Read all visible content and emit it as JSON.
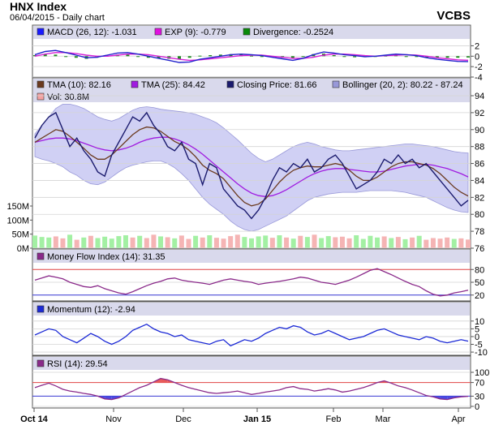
{
  "header": {
    "title": "HNX Index",
    "subtitle": "06/04/2015 - Daily chart",
    "brand": "VCBS"
  },
  "x_axis": {
    "labels": [
      "Oct 14",
      "Nov",
      "Dec",
      "Jan 15",
      "Feb",
      "Mar",
      "Apr"
    ]
  },
  "colors": {
    "panel_bg": "#ffffff",
    "legend_bg": "#d9d9ec",
    "grid": "#d4d4d4",
    "price": "#1b1b6e",
    "tma10": "#6b3a1f",
    "tma25": "#a01ce0",
    "bollinger_fill": "#b7b7ee",
    "bollinger_edge": "#9898d8",
    "vol_up": "#a3f0a3",
    "vol_down": "#f5b4b4",
    "macd": "#2222cc",
    "signal": "#d61fd6",
    "divergence": "#208a20",
    "ref_red": "#e34848",
    "ref_blue": "#3a3ad6",
    "mfi": "#8a2a8a",
    "momentum": "#1c2ad6",
    "rsi": "#8a2a8a"
  },
  "chart_data": [
    {
      "type": "line",
      "title": "MACD",
      "legend": [
        {
          "label": "MACD (26, 12): -1.031",
          "color": "#1a1aff"
        },
        {
          "label": "EXP (9): -0.779",
          "color": "#e010e0"
        },
        {
          "label": "Divergence: -0.2524",
          "color": "#0a8a0a"
        }
      ],
      "yticks": [
        "2",
        "0",
        "-2",
        "-4"
      ],
      "ylim": [
        -4,
        3
      ],
      "series": [
        {
          "name": "MACD",
          "values": [
            0.3,
            0.9,
            1.1,
            0.7,
            0.2,
            -0.3,
            -0.2,
            0.2,
            0.6,
            0.7,
            0.4,
            0.0,
            -0.4,
            -0.8,
            -1.2,
            -1.1,
            -0.6,
            -0.3,
            0.0,
            0.3,
            0.4,
            0.3,
            0.1,
            -0.2,
            -0.5,
            -0.8,
            -0.4,
            0.3,
            0.8,
            0.6,
            0.3,
            0.1,
            -0.1,
            0.0,
            0.2,
            0.4,
            0.3,
            0.1,
            -0.3,
            -0.6,
            -0.8,
            -1.0,
            -1.03
          ]
        },
        {
          "name": "EXP",
          "values": [
            0.0,
            0.4,
            0.7,
            0.7,
            0.5,
            0.2,
            0.0,
            0.0,
            0.2,
            0.4,
            0.4,
            0.3,
            0.0,
            -0.3,
            -0.6,
            -0.8,
            -0.7,
            -0.5,
            -0.3,
            -0.1,
            0.1,
            0.2,
            0.2,
            0.0,
            -0.2,
            -0.4,
            -0.4,
            -0.2,
            0.2,
            0.4,
            0.4,
            0.3,
            0.1,
            0.0,
            0.1,
            0.2,
            0.3,
            0.2,
            0.0,
            -0.3,
            -0.5,
            -0.7,
            -0.78
          ]
        },
        {
          "name": "Divergence",
          "values": [
            0.2,
            0.4,
            0.3,
            0.0,
            -0.3,
            -0.5,
            -0.3,
            0.1,
            0.3,
            0.3,
            0.0,
            -0.3,
            -0.4,
            -0.5,
            -0.6,
            -0.3,
            0.1,
            0.2,
            0.3,
            0.4,
            0.3,
            0.1,
            -0.1,
            -0.2,
            -0.3,
            -0.4,
            0.0,
            0.4,
            0.5,
            0.2,
            -0.1,
            -0.2,
            -0.2,
            0.0,
            0.1,
            0.2,
            0.0,
            -0.1,
            -0.3,
            -0.3,
            -0.3,
            -0.3,
            -0.25
          ]
        }
      ]
    },
    {
      "type": "line",
      "title": "Price",
      "legend": [
        {
          "label": "TMA (10): 82.16",
          "color": "#6b3a1f"
        },
        {
          "label": "TMA (25): 84.42",
          "color": "#a01ce0"
        },
        {
          "label": "Closing Price: 81.66",
          "color": "#1b1b6e"
        },
        {
          "label": "Bollinger (20, 2): 80.22 - 87.24",
          "color": "#9898d8"
        },
        {
          "label": "Vol: 30.8M",
          "color": "#f5a0a0"
        }
      ],
      "yticks": [
        "94",
        "92",
        "90",
        "88",
        "86",
        "84",
        "82",
        "80",
        "78",
        "76"
      ],
      "ylim": [
        76,
        94
      ],
      "vol_ticks": [
        "150M",
        "100M",
        "50M",
        "0M"
      ],
      "vol_max": 150,
      "close": [
        89,
        90.5,
        91.5,
        92,
        90,
        88,
        89,
        87.5,
        86.5,
        85,
        84.5,
        87,
        88.5,
        90,
        91.5,
        91,
        92,
        90.5,
        89.5,
        88,
        87.5,
        88.5,
        86.5,
        86,
        83.5,
        86,
        85.5,
        83,
        82,
        81,
        80.5,
        79.5,
        80.5,
        82,
        84,
        85.5,
        85,
        86,
        85.5,
        86.5,
        85,
        85.5,
        86.5,
        87,
        86,
        84.5,
        83,
        83.5,
        84,
        85,
        86.5,
        86,
        87,
        86,
        86.5,
        85.5,
        86,
        85,
        84,
        83,
        82,
        81,
        81.66
      ],
      "tma10": [
        88.5,
        89,
        89.5,
        90,
        89.8,
        89.2,
        88.5,
        87.8,
        87,
        86.5,
        86.5,
        87,
        87.8,
        88.6,
        89.4,
        90,
        90.3,
        90.2,
        89.8,
        89.2,
        88.6,
        88.2,
        87.6,
        86.8,
        85.8,
        85.2,
        84.8,
        84.2,
        83.2,
        82.2,
        81.4,
        81.0,
        81.2,
        81.8,
        82.8,
        83.8,
        84.6,
        85.2,
        85.5,
        85.7,
        85.6,
        85.6,
        85.8,
        86.0,
        85.8,
        85.2,
        84.5,
        84.0,
        84.0,
        84.4,
        85.0,
        85.6,
        86.0,
        86.2,
        86.2,
        86.0,
        85.8,
        85.4,
        84.8,
        84.0,
        83.2,
        82.6,
        82.16
      ],
      "tma25": [
        88.5,
        88.7,
        88.9,
        89.0,
        89.0,
        88.9,
        88.7,
        88.4,
        88.1,
        87.8,
        87.6,
        87.5,
        87.6,
        87.8,
        88.1,
        88.5,
        88.8,
        89.0,
        89.1,
        89.1,
        88.9,
        88.6,
        88.2,
        87.7,
        87.1,
        86.4,
        85.7,
        85.0,
        84.3,
        83.6,
        83.0,
        82.5,
        82.2,
        82.1,
        82.2,
        82.5,
        82.9,
        83.4,
        83.9,
        84.4,
        84.8,
        85.1,
        85.3,
        85.4,
        85.4,
        85.3,
        85.2,
        85.1,
        85.0,
        85.0,
        85.1,
        85.3,
        85.5,
        85.7,
        85.8,
        85.9,
        85.9,
        85.8,
        85.6,
        85.4,
        85.1,
        84.8,
        84.42
      ],
      "boll_upper": [
        89.5,
        90.5,
        91.5,
        92.5,
        93.0,
        93.0,
        92.8,
        92.5,
        92.0,
        91.5,
        91.2,
        91.0,
        91.3,
        91.8,
        92.3,
        92.6,
        92.7,
        92.6,
        92.4,
        92.3,
        92.2,
        92.1,
        92.0,
        91.8,
        91.5,
        91.2,
        90.8,
        90.2,
        89.5,
        88.8,
        88.0,
        87.2,
        86.6,
        86.2,
        86.5,
        87.0,
        87.5,
        88.0,
        88.3,
        88.5,
        88.3,
        88.0,
        87.8,
        87.6,
        87.5,
        87.5,
        87.6,
        87.7,
        87.8,
        87.9,
        88.0,
        88.1,
        88.2,
        88.3,
        88.3,
        88.2,
        88.1,
        88.0,
        87.8,
        87.6,
        87.4,
        87.3,
        87.24
      ],
      "boll_lower": [
        86.8,
        86.5,
        86.3,
        86.0,
        85.6,
        85.0,
        84.6,
        84.0,
        83.6,
        83.5,
        83.8,
        84.4,
        85.0,
        85.5,
        85.8,
        86.0,
        86.2,
        86.3,
        86.3,
        86.0,
        85.5,
        84.8,
        84.0,
        83.0,
        82.0,
        81.2,
        80.6,
        80.0,
        79.2,
        78.6,
        78.2,
        78.0,
        78.2,
        78.6,
        79.0,
        79.4,
        79.8,
        80.4,
        81.0,
        81.6,
        82.0,
        82.2,
        82.4,
        82.5,
        82.6,
        82.6,
        82.6,
        82.7,
        82.8,
        82.8,
        82.8,
        82.8,
        82.7,
        82.6,
        82.4,
        82.2,
        82.0,
        81.6,
        81.2,
        80.8,
        80.5,
        80.3,
        80.22
      ],
      "volume": [
        45,
        40,
        38,
        42,
        35,
        48,
        30,
        38,
        44,
        36,
        41,
        34,
        43,
        46,
        38,
        44,
        36,
        48,
        42,
        39,
        35,
        45,
        33,
        44,
        38,
        46,
        37,
        34,
        43,
        48,
        40,
        35,
        42,
        45,
        37,
        46,
        38,
        34,
        44,
        40,
        48,
        36,
        43,
        39,
        41,
        35,
        46,
        33,
        44,
        38,
        42,
        36,
        40,
        32,
        38,
        44,
        30,
        36,
        34,
        38,
        33,
        35,
        30.8
      ],
      "vol_up": [
        true,
        true,
        true,
        false,
        false,
        true,
        false,
        true,
        false,
        true,
        true,
        true,
        true,
        true,
        false,
        true,
        false,
        false,
        true,
        false,
        true,
        false,
        false,
        true,
        false,
        true,
        false,
        false,
        false,
        false,
        true,
        true,
        true,
        true,
        false,
        true,
        false,
        true,
        false,
        true,
        false,
        true,
        true,
        false,
        false,
        false,
        true,
        true,
        true,
        true,
        false,
        true,
        false,
        true,
        false,
        true,
        false,
        false,
        false,
        false,
        true,
        false,
        false
      ]
    },
    {
      "type": "line",
      "title": "Money Flow Index",
      "legend": [
        {
          "label": "Money Flow Index (14): 31.35",
          "color": "#8a2a8a"
        }
      ],
      "yticks": [
        "80",
        "50",
        "20"
      ],
      "ylim": [
        10,
        90
      ],
      "ref_lines": [
        80,
        20
      ],
      "values": [
        55,
        60,
        65,
        62,
        58,
        50,
        45,
        40,
        38,
        42,
        35,
        30,
        25,
        22,
        28,
        35,
        42,
        48,
        52,
        58,
        60,
        55,
        52,
        50,
        48,
        45,
        50,
        55,
        58,
        55,
        52,
        50,
        45,
        48,
        50,
        52,
        55,
        58,
        62,
        60,
        55,
        50,
        48,
        45,
        50,
        55,
        62,
        70,
        78,
        82,
        75,
        68,
        60,
        52,
        45,
        40,
        30,
        22,
        18,
        20,
        25,
        28,
        31.35
      ]
    },
    {
      "type": "line",
      "title": "Momentum",
      "legend": [
        {
          "label": "Momentum (12): -2.94",
          "color": "#1c2ad6"
        }
      ],
      "yticks": [
        "10",
        "5",
        "0",
        "-5",
        "-10"
      ],
      "ylim": [
        -11,
        12
      ],
      "values": [
        1,
        3,
        5,
        4,
        0,
        -2,
        -4,
        -1,
        2,
        0,
        -3,
        -5,
        -3,
        0,
        4,
        6,
        8,
        5,
        3,
        2,
        0,
        1,
        -2,
        -3,
        -4,
        -5,
        -3,
        -2,
        -6,
        -4,
        -2,
        -3,
        -1,
        2,
        4,
        6,
        5,
        7,
        6,
        3,
        1,
        2,
        4,
        2,
        0,
        -2,
        -1,
        0,
        2,
        4,
        5,
        3,
        1,
        0,
        -1,
        -2,
        0,
        -1,
        -3,
        -4,
        -3,
        -2,
        -2.94
      ]
    },
    {
      "type": "line",
      "title": "RSI",
      "legend": [
        {
          "label": "RSI (14): 29.54",
          "color": "#8a2a8a"
        }
      ],
      "yticks": [
        "100",
        "70",
        "30",
        "0"
      ],
      "ylim": [
        0,
        100
      ],
      "ref_lines": [
        70,
        30
      ],
      "values": [
        55,
        62,
        68,
        60,
        50,
        45,
        42,
        38,
        35,
        30,
        22,
        20,
        25,
        35,
        45,
        55,
        62,
        72,
        82,
        78,
        70,
        62,
        55,
        50,
        45,
        40,
        38,
        40,
        42,
        45,
        40,
        35,
        38,
        42,
        45,
        48,
        55,
        58,
        52,
        50,
        45,
        48,
        52,
        48,
        42,
        45,
        50,
        55,
        62,
        70,
        75,
        68,
        60,
        55,
        48,
        40,
        32,
        28,
        22,
        20,
        25,
        28,
        29.54
      ]
    }
  ]
}
